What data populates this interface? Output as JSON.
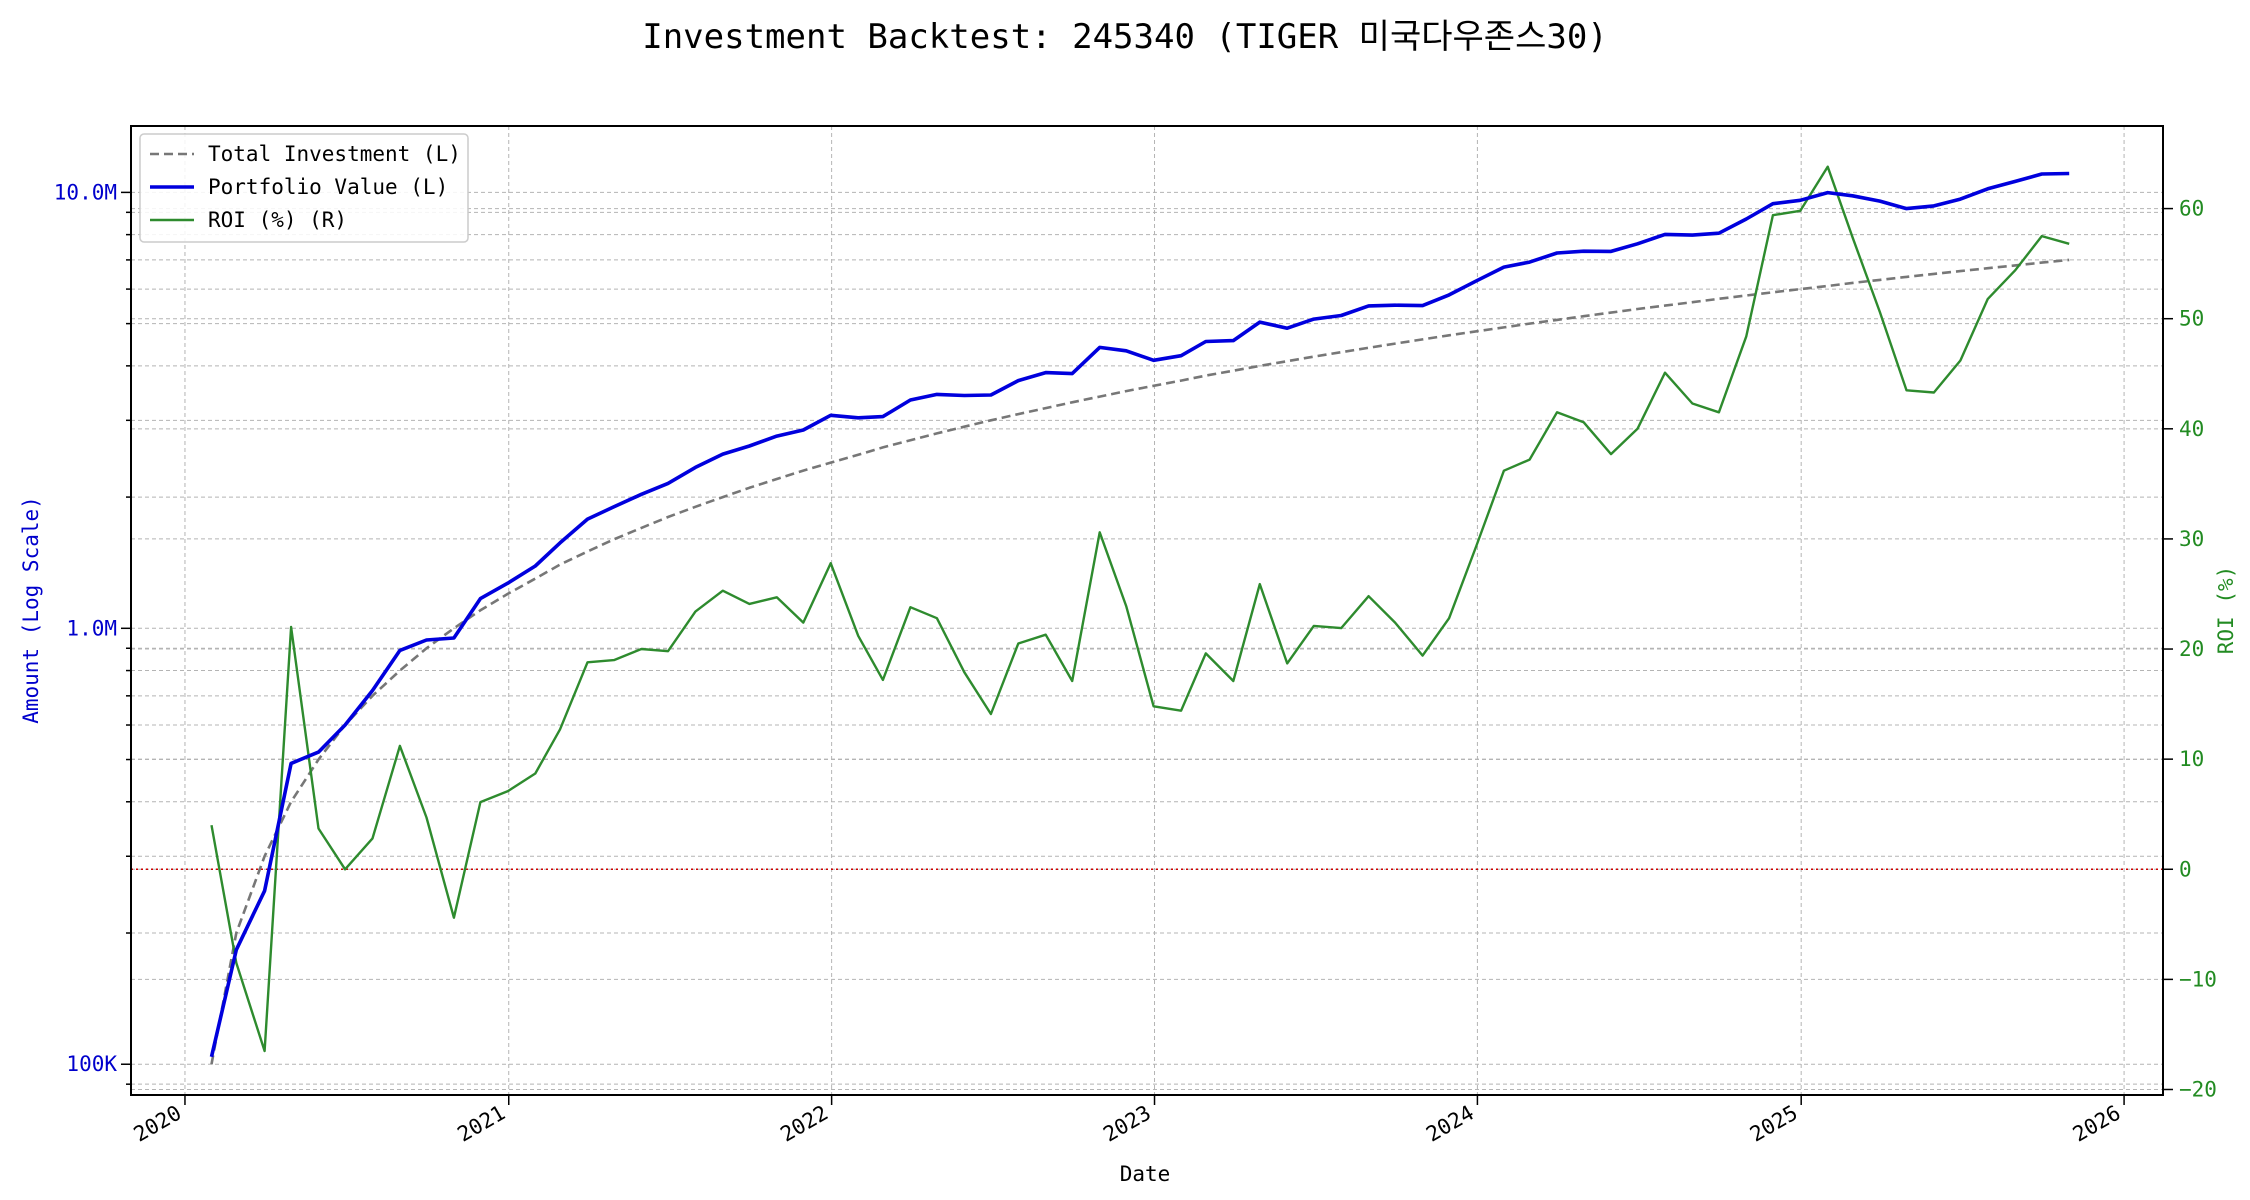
{
  "chart_data": {
    "type": "line",
    "title": "Investment Backtest: 245340 (TIGER 미국다우존스30)",
    "xlabel": "Date",
    "ylabel_left": "Amount (Log Scale)",
    "ylabel_right": "ROI (%)",
    "y_left_scale": "log",
    "y_left_lim": [
      85000,
      14200000
    ],
    "y_right_lim": [
      -20.5,
      67.5
    ],
    "x_lim": [
      "2019-11-01",
      "2026-02-14"
    ],
    "grid": true,
    "legend_position": "top-left",
    "x_ticks": [
      "2020",
      "2021",
      "2022",
      "2023",
      "2024",
      "2025",
      "2026"
    ],
    "y_left_ticks": [
      {
        "value": 100000,
        "label": "100K"
      },
      {
        "value": 1000000,
        "label": "1.0M"
      },
      {
        "value": 10000000,
        "label": "10.0M"
      }
    ],
    "y_right_ticks": [
      -20,
      -10,
      0,
      10,
      20,
      30,
      40,
      50,
      60
    ],
    "zero_line": {
      "axis": "right",
      "value": 0,
      "color": "#cc0000"
    },
    "x": [
      "2020-01-31",
      "2020-02-28",
      "2020-03-31",
      "2020-04-30",
      "2020-05-31",
      "2020-06-30",
      "2020-07-31",
      "2020-08-31",
      "2020-09-30",
      "2020-10-31",
      "2020-11-30",
      "2020-12-31",
      "2021-01-31",
      "2021-02-28",
      "2021-03-31",
      "2021-04-30",
      "2021-05-31",
      "2021-06-30",
      "2021-07-31",
      "2021-08-31",
      "2021-09-30",
      "2021-10-31",
      "2021-11-30",
      "2021-12-31",
      "2022-01-31",
      "2022-02-28",
      "2022-03-31",
      "2022-04-30",
      "2022-05-31",
      "2022-06-30",
      "2022-07-31",
      "2022-08-31",
      "2022-09-30",
      "2022-10-31",
      "2022-11-30",
      "2022-12-31",
      "2023-01-31",
      "2023-02-28",
      "2023-03-31",
      "2023-04-30",
      "2023-05-31",
      "2023-06-30",
      "2023-07-31",
      "2023-08-31",
      "2023-09-30",
      "2023-10-31",
      "2023-11-30",
      "2023-12-31",
      "2024-01-31",
      "2024-02-29",
      "2024-03-31",
      "2024-04-30",
      "2024-05-31",
      "2024-06-30",
      "2024-07-31",
      "2024-08-31",
      "2024-09-30",
      "2024-10-31",
      "2024-11-30",
      "2024-12-31",
      "2025-01-31",
      "2025-02-28",
      "2025-03-31",
      "2025-04-30",
      "2025-05-31",
      "2025-06-30",
      "2025-07-31",
      "2025-08-31",
      "2025-09-30",
      "2025-10-31"
    ],
    "series": [
      {
        "name": "Total Investment (L)",
        "axis": "left",
        "color": "#777777",
        "style": "dashed",
        "values": [
          100000,
          200000,
          300000,
          400000,
          500000,
          600000,
          700000,
          800000,
          900000,
          1000000,
          1100000,
          1200000,
          1300000,
          1400000,
          1500000,
          1600000,
          1700000,
          1800000,
          1900000,
          2000000,
          2100000,
          2200000,
          2300000,
          2400000,
          2500000,
          2600000,
          2700000,
          2800000,
          2900000,
          3000000,
          3100000,
          3200000,
          3300000,
          3400000,
          3500000,
          3600000,
          3700000,
          3800000,
          3900000,
          4000000,
          4100000,
          4200000,
          4300000,
          4400000,
          4500000,
          4600000,
          4700000,
          4800000,
          4900000,
          5000000,
          5100000,
          5200000,
          5300000,
          5400000,
          5500000,
          5600000,
          5700000,
          5800000,
          5900000,
          6000000,
          6100000,
          6200000,
          6300000,
          6400000,
          6500000,
          6600000,
          6700000,
          6800000,
          6900000,
          7000000
        ]
      },
      {
        "name": "Portfolio Value (L)",
        "axis": "left",
        "color": "#0000dd",
        "style": "solid",
        "values": [
          104000,
          183000,
          250000,
          490000,
          520000,
          600000,
          720000,
          890000,
          940000,
          950000,
          1170000,
          1270000,
          1390000,
          1570000,
          1780000,
          1900000,
          2030000,
          2150000,
          2340000,
          2510000,
          2620000,
          2760000,
          2850000,
          3080000,
          3040000,
          3060000,
          3340000,
          3440000,
          3420000,
          3430000,
          3700000,
          3860000,
          3840000,
          4410000,
          4330000,
          4120000,
          4220000,
          4550000,
          4570000,
          5040000,
          4880000,
          5120000,
          5220000,
          5490000,
          5510000,
          5500000,
          5820000,
          6270000,
          6740000,
          6920000,
          7260000,
          7330000,
          7320000,
          7620000,
          8010000,
          7980000,
          8060000,
          8690000,
          9420000,
          9590000,
          9990000,
          9820000,
          9550000,
          9180000,
          9310000,
          9650000,
          10190000,
          10600000,
          11020000,
          11050000
        ]
      },
      {
        "name": "ROI (%) (R)",
        "axis": "right",
        "color": "#2e8b2e",
        "style": "solid",
        "values": [
          4.0,
          -8.5,
          -16.5,
          22.0,
          3.7,
          0.0,
          2.8,
          11.2,
          4.7,
          -4.4,
          6.1,
          7.1,
          8.7,
          12.7,
          18.8,
          19.0,
          20.0,
          19.8,
          23.4,
          25.3,
          24.1,
          24.7,
          22.4,
          27.8,
          21.2,
          17.2,
          23.8,
          22.8,
          17.9,
          14.1,
          20.5,
          21.3,
          17.1,
          30.6,
          23.9,
          14.8,
          14.4,
          19.6,
          17.1,
          25.9,
          18.7,
          22.1,
          21.9,
          24.8,
          22.4,
          19.4,
          22.8,
          29.4,
          36.2,
          37.2,
          41.5,
          40.6,
          37.7,
          40.0,
          45.1,
          42.3,
          41.5,
          48.4,
          59.4,
          59.8,
          63.8,
          57.4,
          50.6,
          43.5,
          43.3,
          46.2,
          51.8,
          54.4,
          57.5,
          56.8
        ]
      }
    ]
  }
}
